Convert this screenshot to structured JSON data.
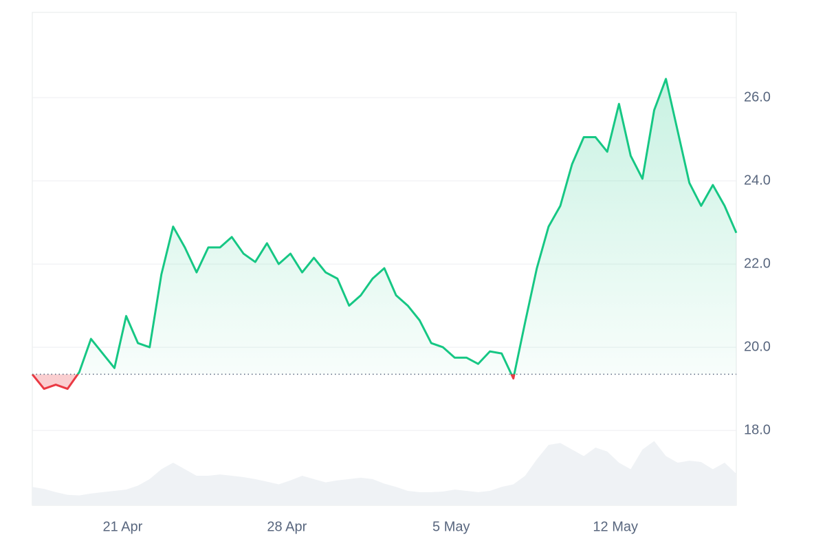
{
  "chart_data": {
    "type": "line",
    "x": [
      0.15,
      0.65,
      1.15,
      1.65,
      2.15,
      2.65,
      3.15,
      3.65,
      4.15,
      4.65,
      5.15,
      5.65,
      6.15,
      6.65,
      7.15,
      7.65,
      8.15,
      8.65,
      9.15,
      9.65,
      10.15,
      10.65,
      11.15,
      11.65,
      12.15,
      12.65,
      13.15,
      13.65,
      14.15,
      14.65,
      15.15,
      15.65,
      16.15,
      16.65,
      17.15,
      17.65,
      18.15,
      18.65,
      19.15,
      19.65,
      20.15,
      20.65,
      21.15,
      21.65,
      22.15,
      22.65,
      23.15,
      23.65,
      24.15,
      24.65,
      25.15,
      25.65,
      26.15,
      26.65,
      27.15,
      27.65,
      28.15,
      28.65,
      29.15,
      29.65,
      30.15
    ],
    "values": [
      19.35,
      19.0,
      19.1,
      19.0,
      19.4,
      20.2,
      19.85,
      19.5,
      20.75,
      20.1,
      20.0,
      21.75,
      22.9,
      22.4,
      21.8,
      22.4,
      22.4,
      22.65,
      22.25,
      22.05,
      22.5,
      22.0,
      22.25,
      21.8,
      22.15,
      21.8,
      21.65,
      21.0,
      21.25,
      21.65,
      21.9,
      21.25,
      21.0,
      20.65,
      20.1,
      20.0,
      19.75,
      19.75,
      19.6,
      19.9,
      19.85,
      19.25,
      20.6,
      21.9,
      22.9,
      23.4,
      24.4,
      25.05,
      25.05,
      24.7,
      25.85,
      24.6,
      24.05,
      25.7,
      26.45,
      25.2,
      23.95,
      23.4,
      23.9,
      23.4,
      22.75
    ],
    "baseline": 19.35,
    "up_color": "#16c784",
    "down_color": "#ea3943",
    "volume": {
      "color": "#eff2f5",
      "values": [
        28,
        25,
        20,
        16,
        15,
        18,
        20,
        22,
        24,
        30,
        40,
        55,
        65,
        55,
        45,
        45,
        47,
        45,
        43,
        40,
        36,
        32,
        38,
        45,
        40,
        35,
        38,
        40,
        42,
        40,
        33,
        28,
        22,
        20,
        20,
        21,
        24,
        22,
        20,
        22,
        28,
        32,
        45,
        70,
        92,
        95,
        85,
        75,
        88,
        82,
        65,
        55,
        85,
        98,
        75,
        65,
        68,
        66,
        55,
        65,
        48
      ],
      "lim": [
        0,
        110
      ]
    },
    "xlim": [
      0.15,
      30.15
    ],
    "xticks": [
      {
        "value": 4,
        "label": "21 Apr"
      },
      {
        "value": 11,
        "label": "28 Apr"
      },
      {
        "value": 18,
        "label": "5 May"
      },
      {
        "value": 25,
        "label": "12 May"
      }
    ],
    "ylim": [
      16.2,
      28.05
    ],
    "yticks": [
      {
        "value": 18,
        "label": "18.0"
      },
      {
        "value": 20,
        "label": "20.0"
      },
      {
        "value": 22,
        "label": "22.0"
      },
      {
        "value": 24,
        "label": "24.0"
      },
      {
        "value": 26,
        "label": "26.0"
      }
    ],
    "grid": true
  }
}
